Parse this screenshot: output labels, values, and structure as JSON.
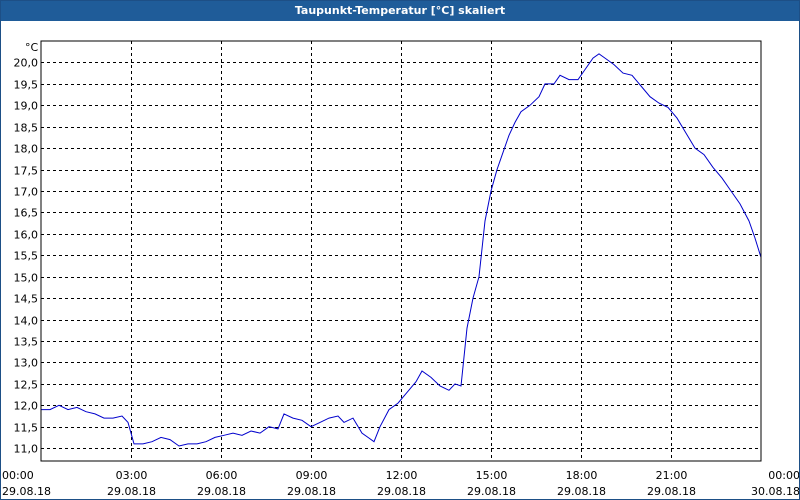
{
  "window": {
    "title": "Taupunkt-Temperatur [°C] skaliert"
  },
  "colors": {
    "titlebar": "#1f5c99",
    "line": "#0000cc",
    "grid": "#000000"
  },
  "chart_data": {
    "type": "line",
    "title": "Taupunkt-Temperatur [°C] skaliert",
    "ylabel": "°C",
    "xlabel": "",
    "ylim": [
      10.7,
      20.5
    ],
    "yticks": [
      "11,0",
      "11,5",
      "12,0",
      "12,5",
      "13,0",
      "13,5",
      "14,0",
      "14,5",
      "15,0",
      "15,5",
      "16,0",
      "16,5",
      "17,0",
      "17,5",
      "18,0",
      "18,5",
      "19,0",
      "19,5",
      "20,0"
    ],
    "ytick_values": [
      11.0,
      11.5,
      12.0,
      12.5,
      13.0,
      13.5,
      14.0,
      14.5,
      15.0,
      15.5,
      16.0,
      16.5,
      17.0,
      17.5,
      18.0,
      18.5,
      19.0,
      19.5,
      20.0
    ],
    "xlim_hours": [
      0,
      24
    ],
    "xticks": [
      {
        "time": "00:00",
        "date": "29.08.18",
        "hour": 0
      },
      {
        "time": "03:00",
        "date": "29.08.18",
        "hour": 3
      },
      {
        "time": "06:00",
        "date": "29.08.18",
        "hour": 6
      },
      {
        "time": "09:00",
        "date": "29.08.18",
        "hour": 9
      },
      {
        "time": "12:00",
        "date": "29.08.18",
        "hour": 12
      },
      {
        "time": "15:00",
        "date": "29.08.18",
        "hour": 15
      },
      {
        "time": "18:00",
        "date": "29.08.18",
        "hour": 18
      },
      {
        "time": "21:00",
        "date": "29.08.18",
        "hour": 21
      },
      {
        "time": "00:00",
        "date": "30.08.18",
        "hour": 24
      }
    ],
    "grid": true,
    "series": [
      {
        "color": "#0000cc",
        "points": [
          [
            0.0,
            11.9
          ],
          [
            0.3,
            11.9
          ],
          [
            0.6,
            12.0
          ],
          [
            0.9,
            11.9
          ],
          [
            1.2,
            11.95
          ],
          [
            1.5,
            11.85
          ],
          [
            1.8,
            11.8
          ],
          [
            2.1,
            11.7
          ],
          [
            2.4,
            11.7
          ],
          [
            2.7,
            11.75
          ],
          [
            2.9,
            11.6
          ],
          [
            3.1,
            11.1
          ],
          [
            3.4,
            11.1
          ],
          [
            3.7,
            11.15
          ],
          [
            4.0,
            11.25
          ],
          [
            4.3,
            11.2
          ],
          [
            4.6,
            11.05
          ],
          [
            4.9,
            11.1
          ],
          [
            5.2,
            11.1
          ],
          [
            5.5,
            11.15
          ],
          [
            5.8,
            11.25
          ],
          [
            6.1,
            11.3
          ],
          [
            6.4,
            11.35
          ],
          [
            6.7,
            11.3
          ],
          [
            7.0,
            11.4
          ],
          [
            7.3,
            11.35
          ],
          [
            7.6,
            11.5
          ],
          [
            7.9,
            11.45
          ],
          [
            8.1,
            11.8
          ],
          [
            8.4,
            11.7
          ],
          [
            8.7,
            11.65
          ],
          [
            9.0,
            11.5
          ],
          [
            9.3,
            11.6
          ],
          [
            9.6,
            11.7
          ],
          [
            9.9,
            11.75
          ],
          [
            10.1,
            11.6
          ],
          [
            10.4,
            11.7
          ],
          [
            10.7,
            11.35
          ],
          [
            10.9,
            11.25
          ],
          [
            11.1,
            11.15
          ],
          [
            11.3,
            11.5
          ],
          [
            11.6,
            11.9
          ],
          [
            11.9,
            12.05
          ],
          [
            12.2,
            12.3
          ],
          [
            12.5,
            12.55
          ],
          [
            12.7,
            12.8
          ],
          [
            13.0,
            12.65
          ],
          [
            13.3,
            12.45
          ],
          [
            13.6,
            12.35
          ],
          [
            13.8,
            12.5
          ],
          [
            14.0,
            12.45
          ],
          [
            14.2,
            13.8
          ],
          [
            14.4,
            14.5
          ],
          [
            14.6,
            15.0
          ],
          [
            14.8,
            16.3
          ],
          [
            15.0,
            17.0
          ],
          [
            15.2,
            17.5
          ],
          [
            15.4,
            17.9
          ],
          [
            15.6,
            18.3
          ],
          [
            15.8,
            18.6
          ],
          [
            16.0,
            18.85
          ],
          [
            16.3,
            19.0
          ],
          [
            16.6,
            19.2
          ],
          [
            16.8,
            19.5
          ],
          [
            17.1,
            19.5
          ],
          [
            17.3,
            19.7
          ],
          [
            17.6,
            19.6
          ],
          [
            17.9,
            19.6
          ],
          [
            18.1,
            19.8
          ],
          [
            18.4,
            20.1
          ],
          [
            18.6,
            20.2
          ],
          [
            18.8,
            20.1
          ],
          [
            19.1,
            19.95
          ],
          [
            19.4,
            19.75
          ],
          [
            19.7,
            19.7
          ],
          [
            20.0,
            19.45
          ],
          [
            20.3,
            19.2
          ],
          [
            20.6,
            19.05
          ],
          [
            20.9,
            18.95
          ],
          [
            21.2,
            18.7
          ],
          [
            21.5,
            18.35
          ],
          [
            21.8,
            18.0
          ],
          [
            22.1,
            17.85
          ],
          [
            22.4,
            17.55
          ],
          [
            22.7,
            17.3
          ],
          [
            23.0,
            17.0
          ],
          [
            23.3,
            16.7
          ],
          [
            23.6,
            16.3
          ],
          [
            23.8,
            15.9
          ],
          [
            24.0,
            15.45
          ]
        ]
      }
    ]
  }
}
